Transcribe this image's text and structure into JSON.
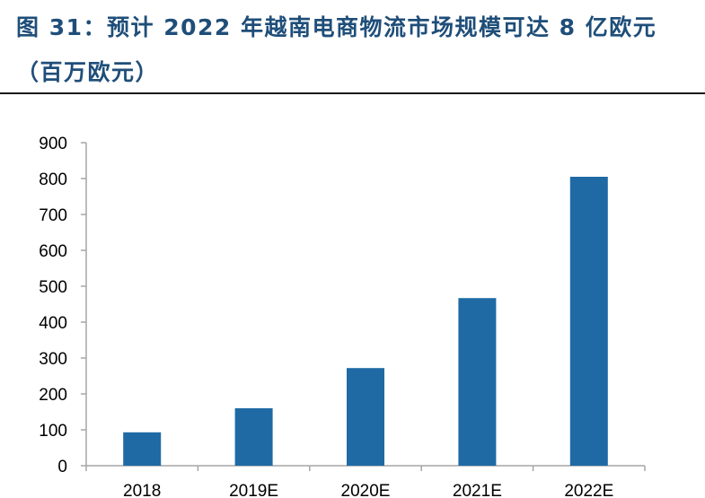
{
  "figure_title": "图 31：预计 2022 年越南电商物流市场规模可达 8 亿欧元（百万欧元）",
  "chart_data": {
    "type": "bar",
    "title": "图 31：预计 2022 年越南电商物流市场规模可达 8 亿欧元（百万欧元）",
    "categories": [
      "2018",
      "2019E",
      "2020E",
      "2021E",
      "2022E"
    ],
    "values": [
      93,
      160,
      272,
      467,
      805
    ],
    "ylim": [
      0,
      900
    ],
    "yticks": [
      0,
      100,
      200,
      300,
      400,
      500,
      600,
      700,
      800,
      900
    ],
    "grid": false,
    "bar_color": "#1f6aa5",
    "axis_color": "#a6a6a6"
  }
}
